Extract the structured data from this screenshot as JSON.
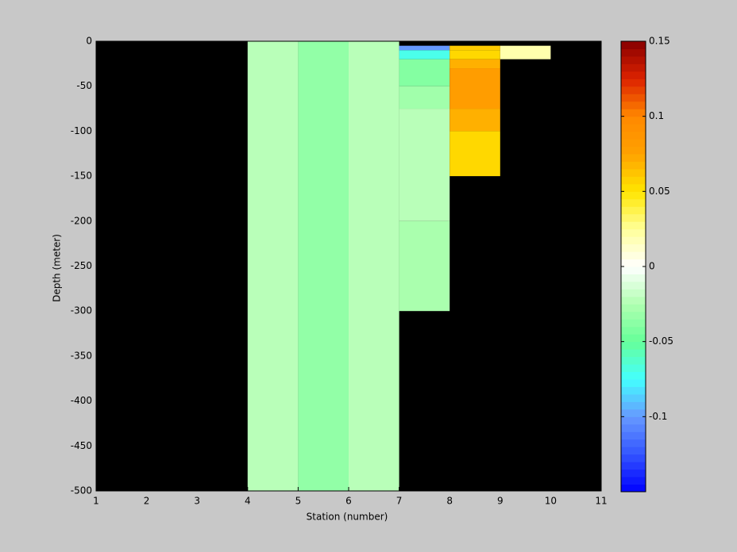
{
  "chart_data": {
    "type": "heatmap",
    "xlabel": "Station (number)",
    "ylabel": "Depth (meter)",
    "xlim": [
      1,
      11
    ],
    "xticks": [
      1,
      2,
      3,
      4,
      5,
      6,
      7,
      8,
      9,
      10,
      11
    ],
    "ylim": [
      -500,
      0
    ],
    "yticks": [
      0,
      -50,
      -100,
      -150,
      -200,
      -250,
      -300,
      -350,
      -400,
      -450,
      -500
    ],
    "clim": [
      -0.15,
      0.15
    ],
    "cticks": [
      0.15,
      0.1,
      0.05,
      0,
      -0.05,
      -0.1
    ],
    "background": "#000000",
    "colormap": [
      "#0000ff",
      "#3355ff",
      "#6699ff",
      "#44ffff",
      "#66ff99",
      "#b0ffb0",
      "#ffffff",
      "#ffff99",
      "#ffe600",
      "#ffa200",
      "#ff8800",
      "#dd2200",
      "#880000"
    ],
    "cells": [
      {
        "x": [
          4,
          5
        ],
        "y": [
          0,
          -500
        ],
        "value": -0.022
      },
      {
        "x": [
          5,
          6
        ],
        "y": [
          0,
          -500
        ],
        "value": -0.035
      },
      {
        "x": [
          6,
          7
        ],
        "y": [
          0,
          -500
        ],
        "value": -0.022
      },
      {
        "x": [
          7,
          8
        ],
        "y": [
          -5,
          -10
        ],
        "value": -0.1
      },
      {
        "x": [
          7,
          8
        ],
        "y": [
          -10,
          -20
        ],
        "value": -0.07
      },
      {
        "x": [
          7,
          8
        ],
        "y": [
          -20,
          -50
        ],
        "value": -0.04
      },
      {
        "x": [
          7,
          8
        ],
        "y": [
          -50,
          -75
        ],
        "value": -0.03
      },
      {
        "x": [
          7,
          8
        ],
        "y": [
          -75,
          -200
        ],
        "value": -0.022
      },
      {
        "x": [
          7,
          8
        ],
        "y": [
          -200,
          -300
        ],
        "value": -0.027
      },
      {
        "x": [
          8,
          9
        ],
        "y": [
          -5,
          -10
        ],
        "value": 0.06
      },
      {
        "x": [
          8,
          9
        ],
        "y": [
          -10,
          -20
        ],
        "value": 0.055
      },
      {
        "x": [
          8,
          9
        ],
        "y": [
          -20,
          -30
        ],
        "value": 0.07
      },
      {
        "x": [
          8,
          9
        ],
        "y": [
          -30,
          -75
        ],
        "value": 0.08
      },
      {
        "x": [
          8,
          9
        ],
        "y": [
          -75,
          -100
        ],
        "value": 0.07
      },
      {
        "x": [
          8,
          9
        ],
        "y": [
          -100,
          -150
        ],
        "value": 0.055
      },
      {
        "x": [
          9,
          10
        ],
        "y": [
          -5,
          -20
        ],
        "value": 0.02
      }
    ]
  }
}
